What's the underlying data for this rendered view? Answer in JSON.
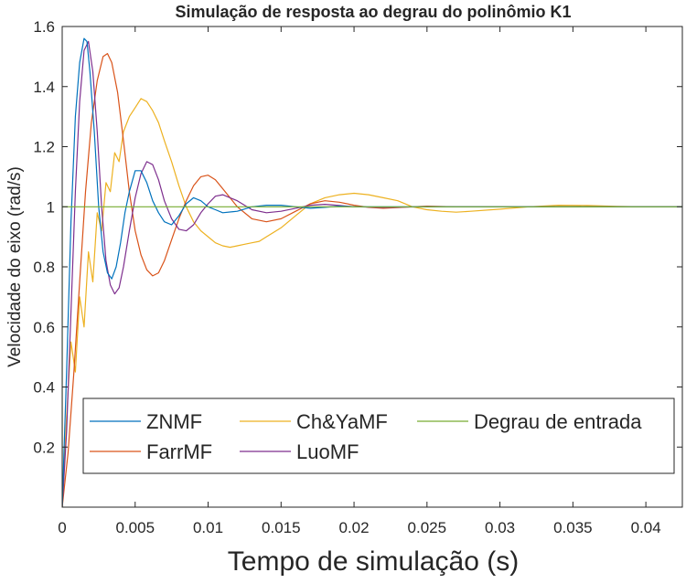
{
  "chart_data": {
    "type": "line",
    "title": "Simulação de resposta ao degrau do polinômio K1",
    "xlabel": "Tempo de simulação (s)",
    "ylabel": "Velocidade do eixo (rad/s)",
    "xlim": [
      0,
      0.0425
    ],
    "ylim": [
      0,
      1.6
    ],
    "xticks": [
      0,
      0.005,
      0.01,
      0.015,
      0.02,
      0.025,
      0.03,
      0.035,
      0.04
    ],
    "xtick_labels": [
      "0",
      "0.005",
      "0.01",
      "0.015",
      "0.02",
      "0.025",
      "0.03",
      "0.035",
      "0.04"
    ],
    "yticks": [
      0.2,
      0.4,
      0.6,
      0.8,
      1,
      1.2,
      1.4,
      1.6
    ],
    "ytick_labels": [
      "0.2",
      "0.4",
      "0.6",
      "0.8",
      "1",
      "1.2",
      "1.4",
      "1.6"
    ],
    "grid": false,
    "legend_position": "bottom",
    "series": [
      {
        "name": "ZNMF",
        "color": "#0072BD",
        "x": [
          0,
          0.0003,
          0.0006,
          0.0009,
          0.0012,
          0.0015,
          0.0017,
          0.0019,
          0.0022,
          0.0025,
          0.0028,
          0.0031,
          0.0034,
          0.0037,
          0.004,
          0.0043,
          0.0046,
          0.005,
          0.0054,
          0.0058,
          0.0062,
          0.0066,
          0.007,
          0.0075,
          0.008,
          0.0085,
          0.009,
          0.0095,
          0.01,
          0.0105,
          0.011,
          0.012,
          0.013,
          0.014,
          0.015,
          0.016,
          0.017,
          0.018,
          0.019,
          0.02,
          0.022,
          0.025,
          0.03,
          0.035,
          0.04,
          0.0425
        ],
        "y": [
          0,
          0.45,
          0.95,
          1.3,
          1.48,
          1.56,
          1.55,
          1.45,
          1.25,
          1.0,
          0.85,
          0.78,
          0.76,
          0.8,
          0.88,
          0.98,
          1.05,
          1.12,
          1.12,
          1.08,
          1.02,
          0.98,
          0.95,
          0.94,
          0.97,
          1.01,
          1.03,
          1.02,
          1.0,
          0.99,
          0.98,
          0.985,
          1.0,
          1.005,
          1.005,
          1.0,
          0.995,
          0.998,
          1.002,
          1.0,
          1.0,
          1.0,
          1.0,
          1.0,
          1.0,
          1.0
        ]
      },
      {
        "name": "Ch&YaMF",
        "color": "#EDB120",
        "x": [
          0,
          0.0003,
          0.0006,
          0.0009,
          0.0012,
          0.0015,
          0.0018,
          0.0021,
          0.0024,
          0.0027,
          0.003,
          0.0033,
          0.0036,
          0.0039,
          0.0042,
          0.0046,
          0.005,
          0.0054,
          0.0058,
          0.0062,
          0.0066,
          0.007,
          0.0075,
          0.008,
          0.0085,
          0.009,
          0.0095,
          0.01,
          0.0105,
          0.011,
          0.0115,
          0.012,
          0.0125,
          0.013,
          0.0135,
          0.014,
          0.015,
          0.016,
          0.017,
          0.018,
          0.019,
          0.02,
          0.021,
          0.022,
          0.023,
          0.024,
          0.025,
          0.026,
          0.027,
          0.028,
          0.03,
          0.032,
          0.034,
          0.036,
          0.038,
          0.04,
          0.0425
        ],
        "y": [
          0,
          0.3,
          0.55,
          0.45,
          0.7,
          0.6,
          0.85,
          0.75,
          0.98,
          0.92,
          1.08,
          1.05,
          1.18,
          1.15,
          1.25,
          1.3,
          1.33,
          1.36,
          1.35,
          1.32,
          1.28,
          1.22,
          1.15,
          1.07,
          1.0,
          0.95,
          0.92,
          0.9,
          0.88,
          0.87,
          0.865,
          0.87,
          0.875,
          0.88,
          0.885,
          0.9,
          0.93,
          0.97,
          1.01,
          1.03,
          1.04,
          1.045,
          1.04,
          1.03,
          1.02,
          1.0,
          0.99,
          0.985,
          0.982,
          0.985,
          0.992,
          1.0,
          1.005,
          1.004,
          1.001,
          1.0,
          1.0
        ]
      },
      {
        "name": "Degrau de entrada",
        "color": "#77AC30",
        "x": [
          0,
          0,
          0.0425
        ],
        "y": [
          0,
          1,
          1
        ]
      },
      {
        "name": "FarrMF",
        "color": "#D95319",
        "x": [
          0,
          0.0004,
          0.0008,
          0.0012,
          0.0016,
          0.002,
          0.0024,
          0.0028,
          0.0031,
          0.0034,
          0.0038,
          0.0042,
          0.0046,
          0.005,
          0.0054,
          0.0058,
          0.0062,
          0.0066,
          0.007,
          0.0075,
          0.008,
          0.0085,
          0.009,
          0.0095,
          0.01,
          0.0105,
          0.011,
          0.0115,
          0.012,
          0.013,
          0.014,
          0.015,
          0.016,
          0.017,
          0.018,
          0.019,
          0.02,
          0.021,
          0.022,
          0.023,
          0.024,
          0.025,
          0.027,
          0.03,
          0.035,
          0.04,
          0.0425
        ],
        "y": [
          0,
          0.18,
          0.45,
          0.75,
          1.05,
          1.28,
          1.42,
          1.5,
          1.51,
          1.48,
          1.38,
          1.22,
          1.05,
          0.92,
          0.84,
          0.79,
          0.77,
          0.78,
          0.82,
          0.89,
          0.96,
          1.02,
          1.07,
          1.1,
          1.105,
          1.09,
          1.06,
          1.03,
          1.0,
          0.96,
          0.95,
          0.96,
          0.985,
          1.01,
          1.02,
          1.015,
          1.005,
          0.998,
          0.995,
          0.997,
          1.0,
          1.002,
          1.0,
          1.0,
          1.0,
          1.0,
          1.0
        ]
      },
      {
        "name": "LuoMF",
        "color": "#7E2F8E",
        "x": [
          0,
          0.0003,
          0.0006,
          0.0009,
          0.0012,
          0.0015,
          0.0018,
          0.0021,
          0.0024,
          0.0027,
          0.003,
          0.0033,
          0.0036,
          0.0039,
          0.0042,
          0.0046,
          0.005,
          0.0054,
          0.0058,
          0.0062,
          0.0066,
          0.007,
          0.0075,
          0.008,
          0.0085,
          0.009,
          0.0095,
          0.01,
          0.0105,
          0.011,
          0.012,
          0.013,
          0.014,
          0.015,
          0.016,
          0.017,
          0.018,
          0.019,
          0.02,
          0.022,
          0.025,
          0.03,
          0.035,
          0.04,
          0.0425
        ],
        "y": [
          0,
          0.25,
          0.65,
          1.05,
          1.35,
          1.52,
          1.55,
          1.45,
          1.25,
          1.0,
          0.82,
          0.74,
          0.71,
          0.73,
          0.8,
          0.92,
          1.03,
          1.11,
          1.15,
          1.14,
          1.09,
          1.02,
          0.96,
          0.925,
          0.92,
          0.94,
          0.98,
          1.01,
          1.035,
          1.04,
          1.02,
          0.99,
          0.98,
          0.985,
          0.995,
          1.005,
          1.008,
          1.004,
          1.0,
          0.998,
          1.0,
          1.0,
          1.0,
          1.0,
          1.0
        ]
      }
    ]
  }
}
